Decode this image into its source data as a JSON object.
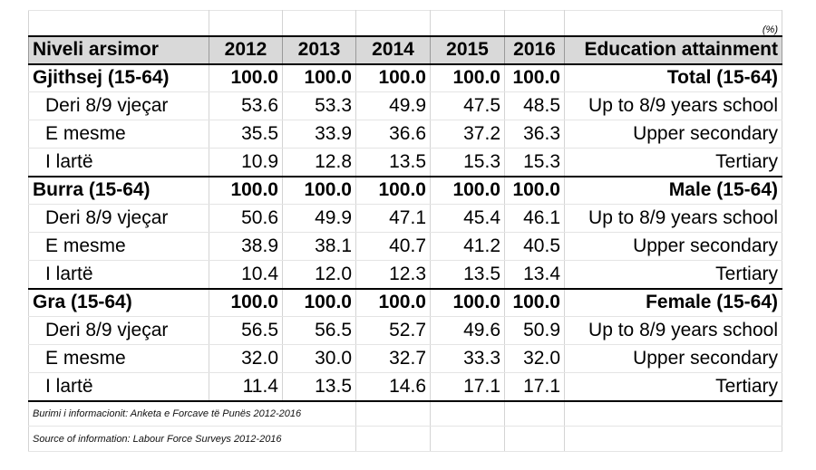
{
  "unit": "(%)",
  "headers": {
    "label": "Niveli arsimor",
    "years": [
      "2012",
      "2013",
      "2014",
      "2015",
      "2016"
    ],
    "english": "Education attainment"
  },
  "rows": [
    {
      "label": "Gjithsej (15-64)",
      "values": [
        "100.0",
        "100.0",
        "100.0",
        "100.0",
        "100.0"
      ],
      "english": "Total (15-64)"
    },
    {
      "label": "Deri 8/9 vjeçar",
      "values": [
        "53.6",
        "53.3",
        "49.9",
        "47.5",
        "48.5"
      ],
      "english": "Up to 8/9 years school"
    },
    {
      "label": "E mesme",
      "values": [
        "35.5",
        "33.9",
        "36.6",
        "37.2",
        "36.3"
      ],
      "english": "Upper secondary"
    },
    {
      "label": "I lartë",
      "values": [
        "10.9",
        "12.8",
        "13.5",
        "15.3",
        "15.3"
      ],
      "english": "Tertiary"
    },
    {
      "label": "Burra (15-64)",
      "values": [
        "100.0",
        "100.0",
        "100.0",
        "100.0",
        "100.0"
      ],
      "english": "Male (15-64)"
    },
    {
      "label": "Deri 8/9 vjeçar",
      "values": [
        "50.6",
        "49.9",
        "47.1",
        "45.4",
        "46.1"
      ],
      "english": "Up to 8/9 years school"
    },
    {
      "label": "E mesme",
      "values": [
        "38.9",
        "38.1",
        "40.7",
        "41.2",
        "40.5"
      ],
      "english": "Upper secondary"
    },
    {
      "label": "I lartë",
      "values": [
        "10.4",
        "12.0",
        "12.3",
        "13.5",
        "13.4"
      ],
      "english": "Tertiary"
    },
    {
      "label": "Gra (15-64)",
      "values": [
        "100.0",
        "100.0",
        "100.0",
        "100.0",
        "100.0"
      ],
      "english": "Female (15-64)"
    },
    {
      "label": "Deri 8/9 vjeçar",
      "values": [
        "56.5",
        "56.5",
        "52.7",
        "49.6",
        "50.9"
      ],
      "english": "Up to 8/9 years school"
    },
    {
      "label": "E mesme",
      "values": [
        "32.0",
        "30.0",
        "32.7",
        "33.3",
        "32.0"
      ],
      "english": "Upper secondary"
    },
    {
      "label": "I lartë",
      "values": [
        "11.4",
        "13.5",
        "14.6",
        "17.1",
        "17.1"
      ],
      "english": "Tertiary"
    }
  ],
  "notes": {
    "source_al": "Burimi i informacionit: Anketa e Forcave të Punës 2012-2016",
    "source_en": "Source of information: Labour Force Surveys 2012-2016"
  }
}
